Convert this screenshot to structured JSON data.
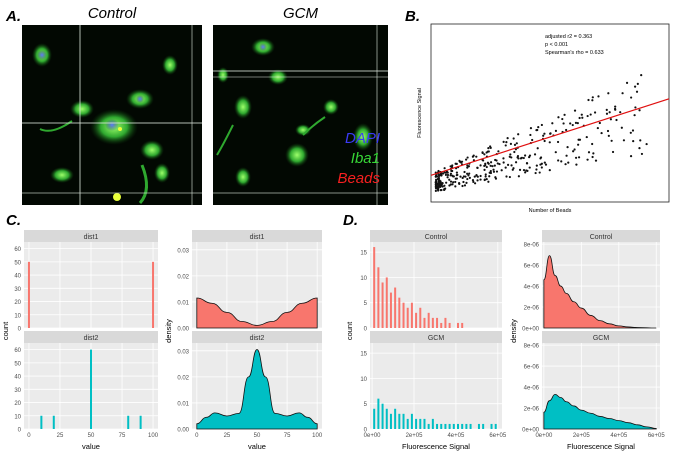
{
  "panel_a": {
    "letter": "A.",
    "titles": [
      "Control",
      "GCM"
    ],
    "legend": [
      {
        "label": "DAPI",
        "color": "#3b3bf5"
      },
      {
        "label": "Iba1",
        "color": "#37d637"
      },
      {
        "label": "Beads",
        "color": "#f52020"
      }
    ]
  },
  "panel_b": {
    "letter": "B.",
    "stats": [
      "adjusted r2 = 0.363",
      "p < 0.001",
      "Spearman's rho = 0.633"
    ],
    "xlabel": "Number of Beads",
    "ylabel": "Fluorescence Signal"
  },
  "panel_c": {
    "letter": "C.",
    "facets": [
      "dist1",
      "dist2"
    ],
    "hist_ylabel": "count",
    "dens_ylabel": "density",
    "xlabel": "value",
    "hist_yticks": [
      "0",
      "10",
      "20",
      "30",
      "40",
      "50",
      "60"
    ],
    "dens_yticks": [
      "0.00",
      "0.01",
      "0.02",
      "0.03"
    ],
    "xticks": [
      "0",
      "25",
      "50",
      "75",
      "100"
    ]
  },
  "panel_d": {
    "letter": "D.",
    "facets": [
      "Control",
      "GCM"
    ],
    "hist_ylabel": "count",
    "dens_ylabel": "density",
    "xlabel": "Fluorescence Signal",
    "hist_yticks": [
      "0",
      "5",
      "10",
      "15"
    ],
    "dens_yticks": [
      "0e+00",
      "2e-06",
      "4e-06",
      "6e-06",
      "8e-06"
    ],
    "xticks": [
      "0e+00",
      "2e+05",
      "4e+05",
      "6e+05"
    ]
  },
  "colors": {
    "red": "#f8766d",
    "teal": "#00bfc4",
    "strip": "#d9d9d9",
    "panel": "#ebebeb"
  },
  "chart_data": [
    {
      "type": "scatter",
      "panel": "B",
      "xlabel": "Number of Beads",
      "ylabel": "Fluorescence Signal",
      "fit_line": {
        "x0": 0,
        "y0": 0.15,
        "x1": 1,
        "y1": 0.58
      },
      "note": "axis ticks unlabeled"
    },
    {
      "type": "bar",
      "panel": "C-dist1",
      "x": [
        0,
        100
      ],
      "values": [
        50,
        50
      ],
      "xlim": [
        0,
        100
      ],
      "ylim": [
        0,
        65
      ]
    },
    {
      "type": "bar",
      "panel": "C-dist2",
      "x": [
        10,
        20,
        50,
        80,
        90
      ],
      "values": [
        10,
        10,
        60,
        10,
        10
      ],
      "xlim": [
        0,
        100
      ],
      "ylim": [
        0,
        65
      ]
    },
    {
      "type": "area",
      "panel": "C-dist1-density",
      "x": [
        0,
        12.5,
        25,
        37.5,
        50,
        62.5,
        75,
        87.5,
        100
      ],
      "values": [
        0.0115,
        0.0095,
        0.006,
        0.0025,
        0.001,
        0.0025,
        0.006,
        0.0095,
        0.0115
      ],
      "xlim": [
        0,
        100
      ],
      "ylim": [
        0,
        0.033
      ]
    },
    {
      "type": "area",
      "panel": "C-dist2-density",
      "x": [
        0,
        8,
        15,
        25,
        35,
        43,
        50,
        57,
        65,
        75,
        85,
        92,
        100
      ],
      "values": [
        0.002,
        0.0045,
        0.0062,
        0.005,
        0.006,
        0.02,
        0.0305,
        0.02,
        0.006,
        0.005,
        0.0062,
        0.0045,
        0.002
      ],
      "xlim": [
        0,
        100
      ],
      "ylim": [
        0,
        0.033
      ]
    },
    {
      "type": "bar",
      "panel": "D-Control",
      "x": [
        10000,
        30000,
        50000,
        70000,
        90000,
        110000,
        130000,
        150000,
        170000,
        190000,
        210000,
        230000,
        250000,
        270000,
        290000,
        310000,
        330000,
        350000,
        370000,
        390000,
        410000,
        430000
      ],
      "values": [
        16,
        12,
        9,
        10,
        7,
        8,
        6,
        5,
        4,
        5,
        3,
        4,
        2,
        3,
        2,
        2,
        1,
        2,
        1,
        0,
        1,
        1
      ],
      "xlim": [
        0,
        620000
      ],
      "ylim": [
        0,
        17
      ]
    },
    {
      "type": "bar",
      "panel": "D-GCM",
      "x": [
        10000,
        30000,
        50000,
        70000,
        90000,
        110000,
        130000,
        150000,
        170000,
        190000,
        210000,
        230000,
        250000,
        270000,
        290000,
        310000,
        330000,
        350000,
        370000,
        390000,
        410000,
        430000,
        450000,
        470000,
        490000,
        510000,
        530000,
        550000,
        570000,
        590000
      ],
      "values": [
        4,
        6,
        5,
        4,
        3,
        4,
        3,
        3,
        2,
        3,
        2,
        2,
        2,
        1,
        2,
        1,
        1,
        1,
        1,
        1,
        1,
        1,
        1,
        1,
        0,
        1,
        1,
        0,
        1,
        1
      ],
      "xlim": [
        0,
        620000
      ],
      "ylim": [
        0,
        17
      ]
    },
    {
      "type": "area",
      "panel": "D-Control-density",
      "x": [
        0,
        30000,
        60000,
        90000,
        120000,
        160000,
        200000,
        250000,
        300000,
        350000,
        400000,
        450000,
        500000,
        600000
      ],
      "values": [
        4.6e-06,
        6.9e-06,
        5e-06,
        4e-06,
        3.3e-06,
        2.5e-06,
        1.9e-06,
        1.2e-06,
        7e-07,
        4e-07,
        2e-07,
        1e-07,
        5e-08,
        0.0
      ],
      "xlim": [
        0,
        620000
      ],
      "ylim": [
        0,
        8.2e-06
      ]
    },
    {
      "type": "area",
      "panel": "D-GCM-density",
      "x": [
        0,
        30000,
        60000,
        90000,
        120000,
        160000,
        200000,
        250000,
        300000,
        350000,
        400000,
        450000,
        500000,
        550000,
        600000
      ],
      "values": [
        1.6e-06,
        2.7e-06,
        3.3e-06,
        3e-06,
        2.6e-06,
        2.2e-06,
        1.8e-06,
        1.5e-06,
        1.2e-06,
        1e-06,
        8e-07,
        6e-07,
        4e-07,
        2e-07,
        5e-08
      ],
      "xlim": [
        0,
        620000
      ],
      "ylim": [
        0,
        8.2e-06
      ]
    }
  ]
}
